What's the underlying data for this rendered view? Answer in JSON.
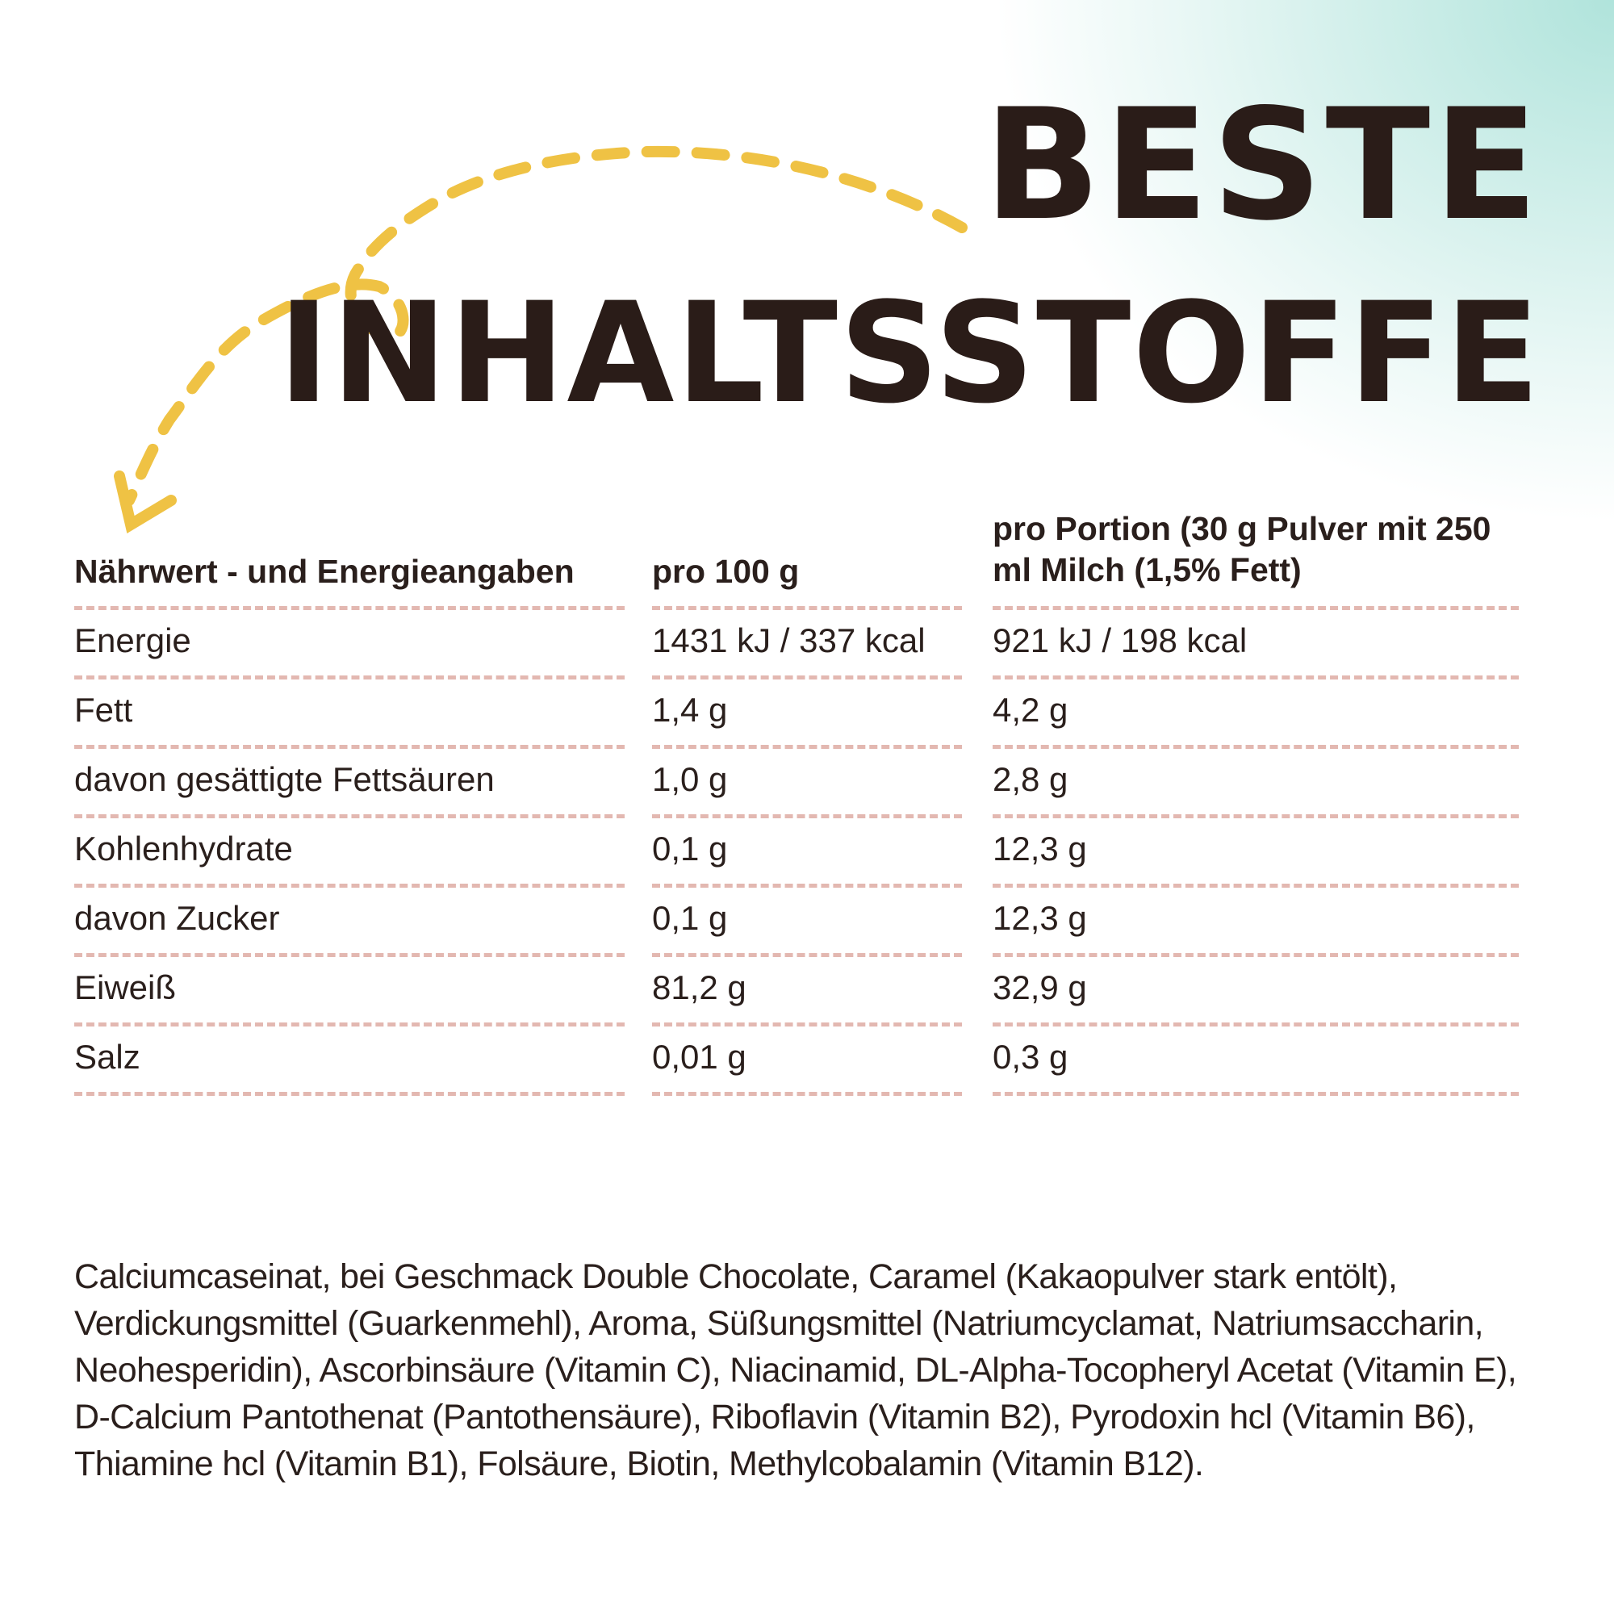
{
  "headline": {
    "line1": "BESTE",
    "line2": "INHALTSSTOFFE"
  },
  "colors": {
    "accent_arrow": "#efc244",
    "headline_text": "#2a1c18",
    "divider": "#e3b8b1",
    "spray": "#6fcdbe"
  },
  "decor": {
    "arrow_icon": "dashed-loop-arrow"
  },
  "table": {
    "header": {
      "col1": "Nährwert - und Energieangaben",
      "col2": "pro 100 g",
      "col3": "pro Portion (30 g Pulver mit 250 ml Milch (1,5% Fett)"
    },
    "rows": [
      {
        "label": "Energie",
        "per100": "1431 kJ / 337 kcal",
        "perPortion": "921 kJ / 198 kcal"
      },
      {
        "label": "Fett",
        "per100": "1,4 g",
        "perPortion": "4,2 g"
      },
      {
        "label": "davon gesättigte Fettsäuren",
        "per100": "1,0 g",
        "perPortion": "2,8 g"
      },
      {
        "label": "Kohlenhydrate",
        "per100": "0,1 g",
        "perPortion": "12,3 g"
      },
      {
        "label": "davon Zucker",
        "per100": "0,1 g",
        "perPortion": "12,3 g"
      },
      {
        "label": "Eiweiß",
        "per100": "81,2 g",
        "perPortion": "32,9  g"
      },
      {
        "label": "Salz",
        "per100": "0,01 g",
        "perPortion": "0,3 g"
      }
    ]
  },
  "ingredients": "Calciumcaseinat, bei Geschmack Double Chocolate, Caramel (Kakaopulver stark entölt), Verdickungsmittel (Guarkenmehl), Aroma, Süßungsmittel (Natriumcyclamat, Natriumsaccharin, Neohesperidin), Ascorbinsäure (Vitamin C), Niacinamid, DL-Alpha-Tocopheryl Acetat (Vitamin E), D-Calcium Pantothenat (Pantothensäure), Riboflavin (Vitamin B2), Pyrodoxin hcl (Vitamin B6), Thiamine hcl (Vitamin B1), Folsäure, Biotin, Methylcobalamin (Vitamin B12)."
}
